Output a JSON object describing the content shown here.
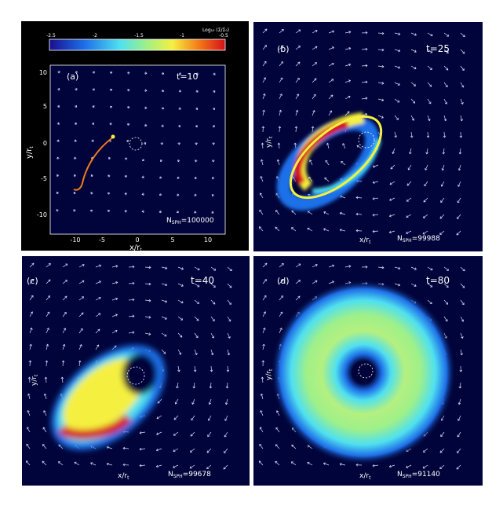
{
  "colorbar": {
    "label": "Log₁₀ (Σ/Σ₀)",
    "ticks": [
      "-2.5",
      "-2",
      "-1.5",
      "-1",
      "-0.5"
    ]
  },
  "panels": [
    {
      "id": "a",
      "tag": "(a)",
      "time": "t=10",
      "n_label": "N",
      "n_sub": "SPH",
      "n_value": "=100000",
      "xlabel_main": "x/r",
      "xlabel_sub": "t",
      "ylabel_main": "y/r",
      "ylabel_sub": "t",
      "x_ticks": [
        "-10",
        "-5",
        "0",
        "5",
        "10"
      ],
      "y_ticks": [
        "10",
        "5",
        "0",
        "-5",
        "-10"
      ]
    },
    {
      "id": "b",
      "tag": "(b)",
      "time": "t=25",
      "n_label": "N",
      "n_sub": "SPH",
      "n_value": "=99988",
      "xlabel_main": "x/r",
      "xlabel_sub": "t",
      "ylabel_main": "y/r",
      "ylabel_sub": "t"
    },
    {
      "id": "c",
      "tag": "(c)",
      "time": "t=40",
      "n_label": "N",
      "n_sub": "SPH",
      "n_value": "=99678",
      "xlabel_main": "x/r",
      "xlabel_sub": "t",
      "ylabel_main": "y/r",
      "ylabel_sub": "t"
    },
    {
      "id": "d",
      "tag": "(d)",
      "time": "t=80",
      "n_label": "N",
      "n_sub": "SPH",
      "n_value": "=91140",
      "xlabel_main": "x/r",
      "xlabel_sub": "t",
      "ylabel_main": "y/r",
      "ylabel_sub": "t"
    }
  ],
  "colors": {
    "background": "#01043a",
    "frame": "#000000",
    "arrows": "#d8dcff",
    "text": "#ffffff"
  }
}
